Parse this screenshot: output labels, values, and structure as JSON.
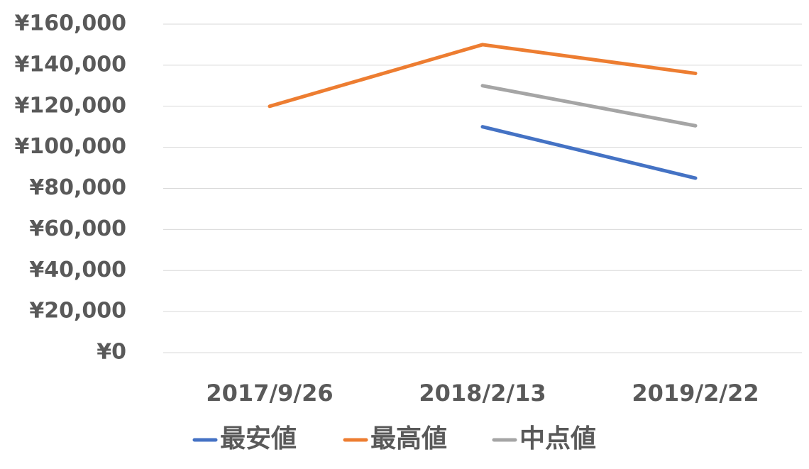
{
  "chart_data": {
    "type": "line",
    "categories": [
      "2017/9/26",
      "2018/2/13",
      "2019/2/22"
    ],
    "series": [
      {
        "name": "最安値",
        "color": "#4472c4",
        "values": [
          null,
          110000,
          85000
        ]
      },
      {
        "name": "最高値",
        "color": "#ed7d31",
        "values": [
          120000,
          150000,
          136000
        ]
      },
      {
        "name": "中点値",
        "color": "#a5a5a5",
        "values": [
          null,
          130000,
          110500
        ]
      }
    ],
    "ylim": [
      0,
      160000
    ],
    "yticks": [
      {
        "value": 0,
        "label": "¥0"
      },
      {
        "value": 20000,
        "label": "¥20,000"
      },
      {
        "value": 40000,
        "label": "¥40,000"
      },
      {
        "value": 60000,
        "label": "¥60,000"
      },
      {
        "value": 80000,
        "label": "¥80,000"
      },
      {
        "value": 100000,
        "label": "¥100,000"
      },
      {
        "value": 120000,
        "label": "¥120,000"
      },
      {
        "value": 140000,
        "label": "¥140,000"
      },
      {
        "value": 160000,
        "label": "¥160,000"
      }
    ],
    "grid": true,
    "legend": "bottom"
  }
}
